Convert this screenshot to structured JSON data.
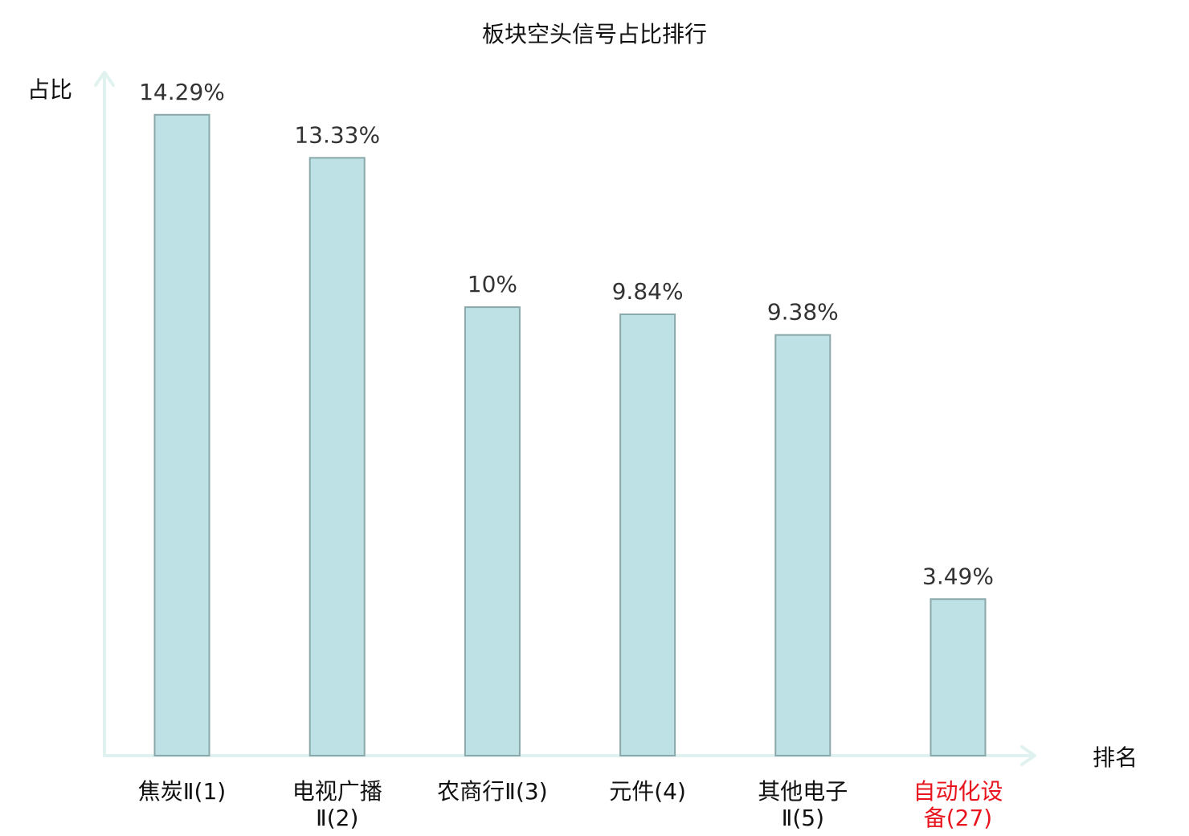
{
  "chart_data": {
    "type": "bar",
    "title": "板块空头信号占比排行",
    "ylabel": "占比",
    "xlabel": "排名",
    "categories": [
      {
        "name": "焦炭",
        "rank": "Ⅱ(1)",
        "lines": [
          "焦炭Ⅱ(1)"
        ],
        "highlight": false
      },
      {
        "name": "电视广播",
        "rank": "Ⅱ(2)",
        "lines": [
          "电视广播",
          "Ⅱ(2)"
        ],
        "highlight": false
      },
      {
        "name": "农商行",
        "rank": "Ⅱ(3)",
        "lines": [
          "农商行Ⅱ(3)"
        ],
        "highlight": false
      },
      {
        "name": "元件",
        "rank": "(4)",
        "lines": [
          "元件(4)"
        ],
        "highlight": false
      },
      {
        "name": "其他电子",
        "rank": "Ⅱ(5)",
        "lines": [
          "其他电子",
          "Ⅱ(5)"
        ],
        "highlight": false
      },
      {
        "name": "自动化设备",
        "rank": "(27)",
        "lines": [
          "自动化设",
          "备(27)"
        ],
        "highlight": true
      }
    ],
    "values": [
      14.29,
      13.33,
      10,
      9.84,
      9.38,
      3.49
    ],
    "value_labels": [
      "14.29%",
      "13.33%",
      "10%",
      "9.84%",
      "9.38%",
      "3.49%"
    ],
    "ylim": [
      0,
      15.2
    ],
    "grid": false,
    "colors": {
      "bar_fill": "#bde1e4",
      "bar_stroke": "#8aa7a9",
      "axis": "#e0f2ef",
      "text": "#111111",
      "value_text": "#333333",
      "highlight": "#e8141e"
    }
  }
}
